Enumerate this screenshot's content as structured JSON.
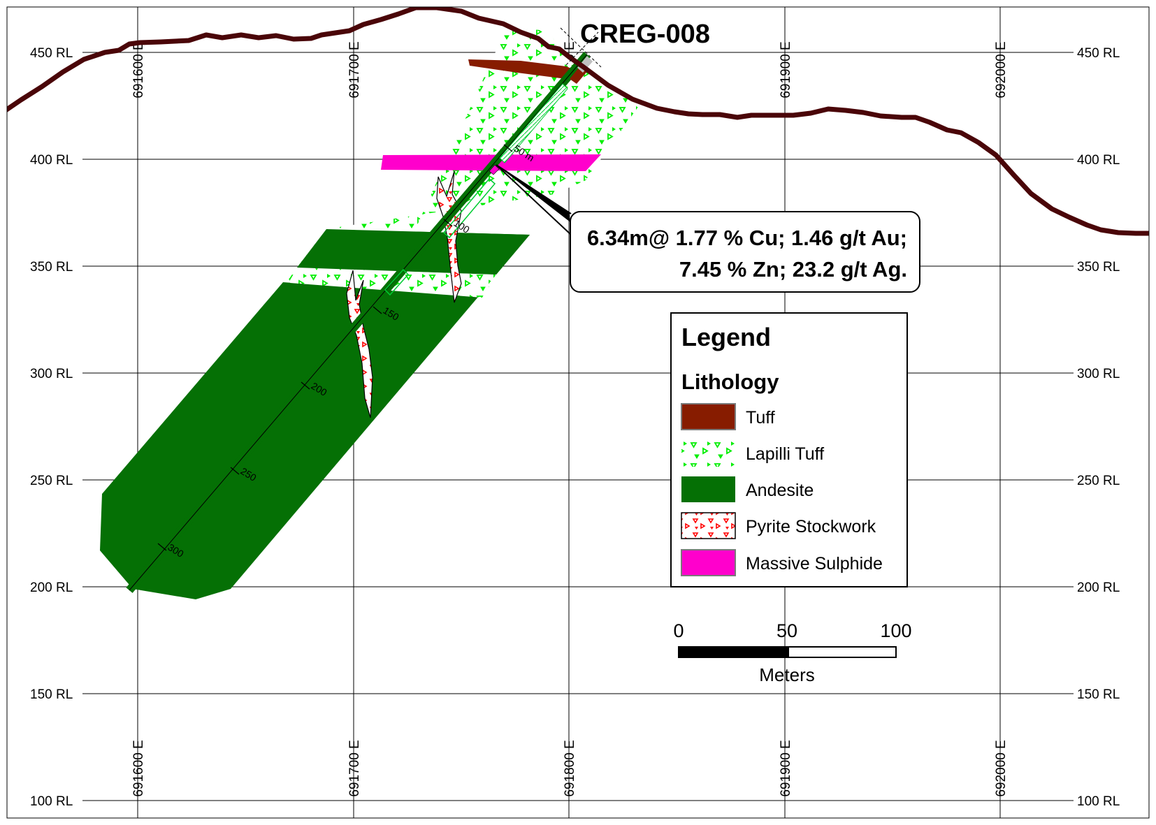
{
  "title": "CREG-008",
  "colors": {
    "topography": "#4a0508",
    "tuff": "#871c00",
    "lapilli": "#00ff00",
    "andesite": "#057005",
    "pyrite": "#ff0000",
    "sulphide": "#ff00cc",
    "drillhole": "#00cc33"
  },
  "grid": {
    "rl_labels": [
      "450 RL",
      "400 RL",
      "350 RL",
      "300 RL",
      "250 RL",
      "200 RL",
      "150 RL",
      "100 RL"
    ],
    "easting_labels": [
      "691600 E",
      "691700 E",
      "691800 E",
      "691900 E",
      "692000 E"
    ]
  },
  "drillhole": {
    "depth_ticks": [
      "50 m",
      "100",
      "150",
      "200",
      "250",
      "300"
    ]
  },
  "callout": {
    "line1": "6.34m@ 1.77 % Cu; 1.46 g/t Au;",
    "line2": "7.45 % Zn; 23.2 g/t Ag."
  },
  "legend": {
    "title": "Legend",
    "subtitle": "Lithology",
    "items": [
      {
        "label": "Tuff",
        "pattern": "tuff"
      },
      {
        "label": "Lapilli Tuff",
        "pattern": "lapilli"
      },
      {
        "label": "Andesite",
        "pattern": "andesite"
      },
      {
        "label": "Pyrite Stockwork",
        "pattern": "pyrite"
      },
      {
        "label": "Massive Sulphide",
        "pattern": "sulphide"
      }
    ]
  },
  "scale_bar": {
    "labels": [
      "0",
      "50",
      "100"
    ],
    "unit": "Meters"
  }
}
